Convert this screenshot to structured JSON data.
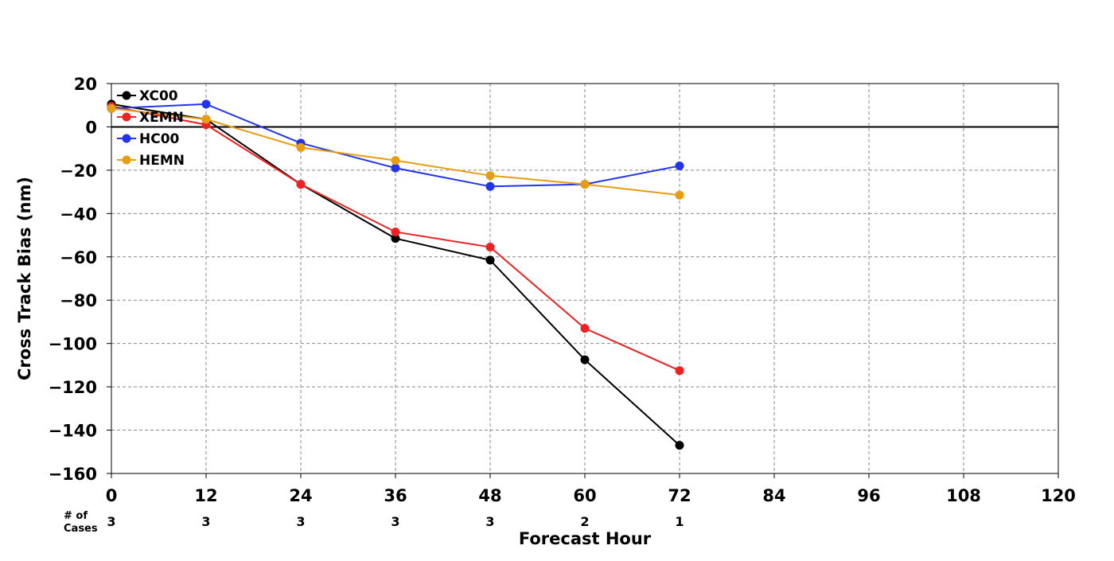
{
  "chart_data": {
    "type": "line",
    "title": "",
    "xlabel": "Forecast Hour",
    "ylabel": "Cross Track Bias (nm)",
    "xlim": [
      0,
      120
    ],
    "ylim": [
      -160,
      20
    ],
    "x_ticks": [
      "0",
      "12",
      "24",
      "36",
      "48",
      "60",
      "72",
      "84",
      "96",
      "108",
      "120"
    ],
    "y_ticks": [
      "20",
      "0",
      "−20",
      "−40",
      "−60",
      "−80",
      "−100",
      "−120",
      "−140",
      "−160"
    ],
    "grid": true,
    "legend_position": "top-left",
    "x": [
      0,
      12,
      24,
      36,
      48,
      60,
      72
    ],
    "series": [
      {
        "name": "XC00",
        "color": "#000000",
        "values": [
          10.5,
          3.5,
          -26.5,
          -51.5,
          -61.5,
          -107.5,
          -147
        ]
      },
      {
        "name": "XEMN",
        "color": "#ee2222",
        "values": [
          9.5,
          1,
          -26.5,
          -48.5,
          -55.5,
          -93,
          -112.5
        ]
      },
      {
        "name": "HC00",
        "color": "#2233ee",
        "values": [
          8.5,
          10.5,
          -7.5,
          -19,
          -27.5,
          -26.5,
          -18
        ]
      },
      {
        "name": "HEMN",
        "color": "#e89c10",
        "values": [
          8.5,
          3.5,
          -9.5,
          -15.5,
          -22.5,
          -26.5,
          -31.5
        ]
      }
    ],
    "cases_label": "# of\nCases",
    "cases": [
      "3",
      "3",
      "3",
      "3",
      "3",
      "2",
      "1"
    ]
  }
}
